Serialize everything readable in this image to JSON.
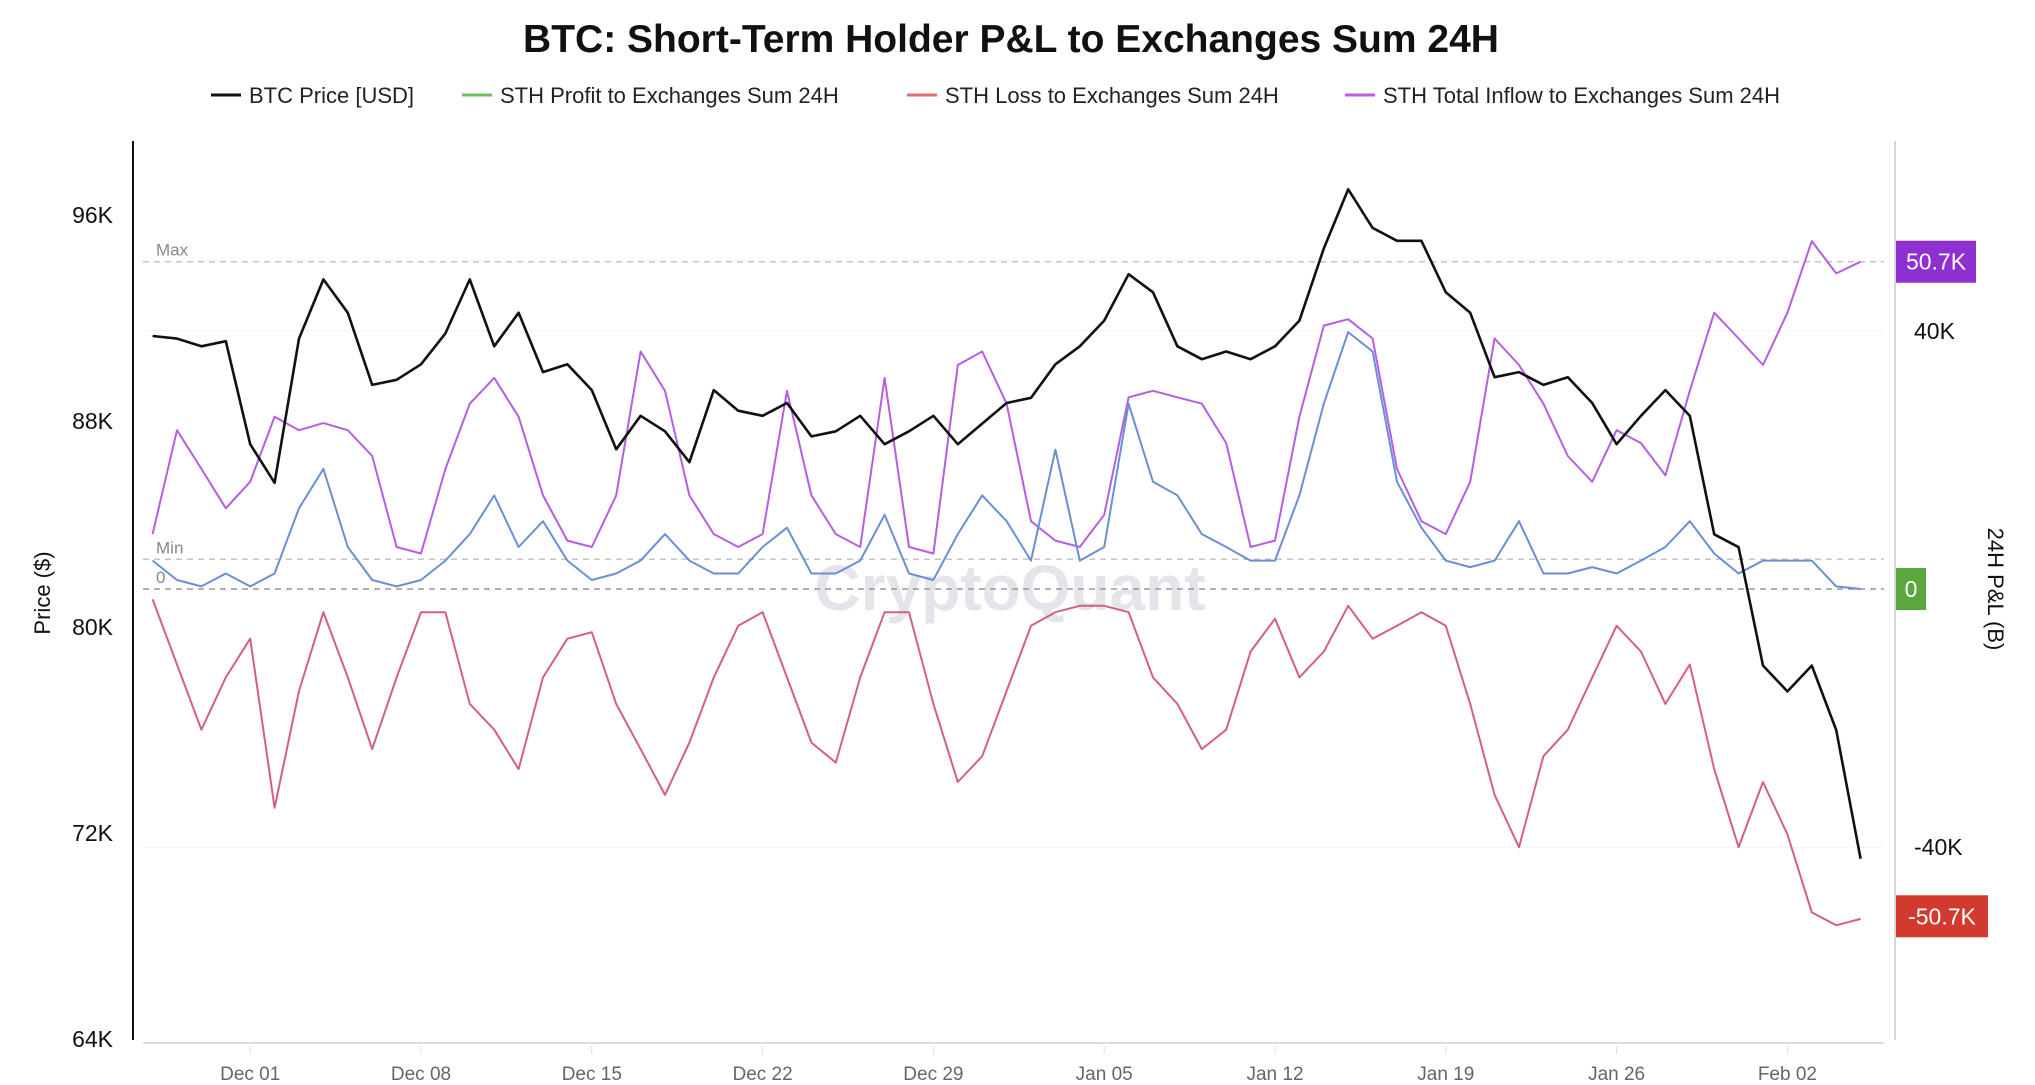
{
  "chart_data": {
    "type": "line",
    "title": "BTC: Short-Term Holder P&L to Exchanges Sum 24H",
    "watermark": "CryptoQuant",
    "legend_position": "top",
    "grid": false,
    "x": [
      "Nov 27",
      "Nov 28",
      "Nov 29",
      "Nov 30",
      "Dec 01",
      "Dec 02",
      "Dec 03",
      "Dec 04",
      "Dec 05",
      "Dec 06",
      "Dec 07",
      "Dec 08",
      "Dec 09",
      "Dec 10",
      "Dec 11",
      "Dec 12",
      "Dec 13",
      "Dec 14",
      "Dec 15",
      "Dec 16",
      "Dec 17",
      "Dec 18",
      "Dec 19",
      "Dec 20",
      "Dec 21",
      "Dec 22",
      "Dec 23",
      "Dec 24",
      "Dec 25",
      "Dec 26",
      "Dec 27",
      "Dec 28",
      "Dec 29",
      "Dec 30",
      "Dec 31",
      "Jan 01",
      "Jan 02",
      "Jan 03",
      "Jan 04",
      "Jan 05",
      "Jan 06",
      "Jan 07",
      "Jan 08",
      "Jan 09",
      "Jan 10",
      "Jan 11",
      "Jan 12",
      "Jan 13",
      "Jan 14",
      "Jan 15",
      "Jan 16",
      "Jan 17",
      "Jan 18",
      "Jan 19",
      "Jan 20",
      "Jan 21",
      "Jan 22",
      "Jan 23",
      "Jan 24",
      "Jan 25",
      "Jan 26",
      "Jan 27",
      "Jan 28",
      "Jan 29",
      "Jan 30",
      "Jan 31",
      "Feb 01",
      "Feb 02",
      "Feb 03",
      "Feb 04",
      "Feb 05"
    ],
    "x_ticks": [
      "Dec 01",
      "Dec 08",
      "Dec 15",
      "Dec 22",
      "Dec 29",
      "Jan 05",
      "Jan 12",
      "Jan 19",
      "Jan 26",
      "Feb 02"
    ],
    "left_axis": {
      "label": "Price ($)",
      "ylim": [
        64,
        96
      ],
      "ticks": [
        96,
        88,
        80,
        72,
        64
      ],
      "tick_labels": [
        "96K",
        "88K",
        "80K",
        "72K",
        "64K"
      ]
    },
    "right_axis": {
      "label": "24H P&L (B)",
      "ylim": [
        -58,
        58
      ],
      "ticks": [
        40,
        0,
        -40
      ],
      "tick_labels": [
        "40K",
        "0",
        "-40K"
      ]
    },
    "reference_lines": [
      {
        "label": "Max",
        "value": 50.7
      },
      {
        "label": "Min",
        "value": 4.6
      },
      {
        "label": "0",
        "value": 0
      }
    ],
    "badges": [
      {
        "text": "50.7K",
        "value": 50.7,
        "color": "#8e2fcf"
      },
      {
        "text": "0",
        "value": 0,
        "color": "#5aa83c"
      },
      {
        "text": "-50.7K",
        "value": -50.7,
        "color": "#d23a2f"
      }
    ],
    "series": [
      {
        "name": "BTC Price [USD]",
        "axis": "left",
        "color": "#111111",
        "values": [
          91.3,
          91.2,
          90.9,
          91.1,
          87.1,
          85.6,
          91.2,
          93.5,
          92.2,
          89.4,
          89.6,
          90.2,
          91.4,
          93.5,
          90.9,
          92.2,
          89.9,
          90.2,
          89.2,
          86.9,
          88.2,
          87.6,
          86.4,
          89.2,
          88.4,
          88.2,
          88.7,
          87.4,
          87.6,
          88.2,
          87.1,
          87.6,
          88.2,
          87.1,
          87.9,
          88.7,
          88.9,
          90.2,
          90.9,
          91.9,
          93.7,
          93.0,
          90.9,
          90.4,
          90.7,
          90.4,
          90.9,
          91.9,
          94.7,
          97.0,
          95.5,
          95.0,
          95.0,
          93.0,
          92.2,
          89.7,
          89.9,
          89.4,
          89.7,
          88.7,
          87.1,
          88.2,
          89.2,
          88.2,
          83.6,
          83.1,
          78.5,
          77.5,
          78.5,
          76.0,
          71.0
        ]
      },
      {
        "name": "STH Profit to Exchanges Sum 24H",
        "axis": "right",
        "color": "#6cbf5c",
        "line_color": "#6a8fd2",
        "values": [
          4.4,
          1.4,
          0.4,
          2.4,
          0.4,
          2.4,
          12.5,
          18.6,
          6.5,
          1.4,
          0.4,
          1.4,
          4.4,
          8.5,
          14.5,
          6.5,
          10.5,
          4.4,
          1.4,
          2.4,
          4.4,
          8.5,
          4.4,
          2.4,
          2.4,
          6.5,
          9.5,
          2.4,
          2.4,
          4.4,
          11.5,
          2.4,
          1.4,
          8.5,
          14.5,
          10.5,
          4.4,
          21.6,
          4.4,
          6.5,
          28.7,
          16.6,
          14.5,
          8.5,
          6.5,
          4.4,
          4.4,
          14.5,
          28.7,
          39.8,
          36.8,
          16.6,
          9.5,
          4.4,
          3.4,
          4.4,
          10.5,
          2.4,
          2.4,
          3.4,
          2.4,
          4.4,
          6.5,
          10.5,
          5.5,
          2.4,
          4.4,
          4.4,
          4.4,
          0.4,
          0
        ]
      },
      {
        "name": "STH Loss to Exchanges Sum 24H",
        "axis": "right",
        "color": "#e07070",
        "line_color": "#d3617c",
        "values": [
          -1.6,
          -11.7,
          -21.8,
          -13.7,
          -7.7,
          -33.9,
          -15.8,
          -3.6,
          -13.7,
          -24.8,
          -13.7,
          -3.6,
          -3.6,
          -17.8,
          -21.8,
          -27.9,
          -13.7,
          -7.7,
          -6.7,
          -17.8,
          -24.8,
          -31.9,
          -23.8,
          -13.7,
          -5.7,
          -3.6,
          -13.7,
          -23.8,
          -26.9,
          -13.7,
          -3.6,
          -3.6,
          -17.8,
          -29.9,
          -25.9,
          -15.8,
          -5.7,
          -3.6,
          -2.6,
          -2.6,
          -3.6,
          -13.7,
          -17.8,
          -24.8,
          -21.8,
          -9.7,
          -4.6,
          -13.7,
          -9.7,
          -2.6,
          -7.7,
          -5.7,
          -3.6,
          -5.7,
          -17.8,
          -31.9,
          -40.0,
          -25.9,
          -21.8,
          -13.7,
          -5.7,
          -9.7,
          -17.8,
          -11.7,
          -27.9,
          -40.0,
          -29.9,
          -38.0,
          -50.1,
          -52.1,
          -51.1
        ]
      },
      {
        "name": "STH Total Inflow to  Exchanges Sum 24H",
        "axis": "right",
        "color": "#b65ee2",
        "line_color": "#b65ee2",
        "values": [
          8.5,
          24.6,
          18.6,
          12.5,
          16.6,
          26.7,
          24.6,
          25.7,
          24.6,
          20.6,
          6.5,
          5.5,
          18.6,
          28.7,
          32.7,
          26.7,
          14.5,
          7.5,
          6.5,
          14.5,
          36.8,
          30.7,
          14.5,
          8.5,
          6.5,
          8.5,
          30.7,
          14.5,
          8.5,
          6.5,
          32.7,
          6.5,
          5.5,
          34.7,
          36.8,
          28.7,
          10.5,
          7.5,
          6.5,
          11.5,
          29.7,
          30.7,
          29.7,
          28.7,
          22.6,
          6.5,
          7.5,
          26.7,
          40.8,
          41.8,
          38.8,
          18.6,
          10.5,
          8.5,
          16.6,
          38.8,
          34.7,
          28.7,
          20.6,
          16.6,
          24.6,
          22.6,
          17.6,
          30.7,
          42.8,
          38.8,
          34.7,
          42.8,
          53.9,
          48.9,
          50.7
        ]
      }
    ]
  }
}
